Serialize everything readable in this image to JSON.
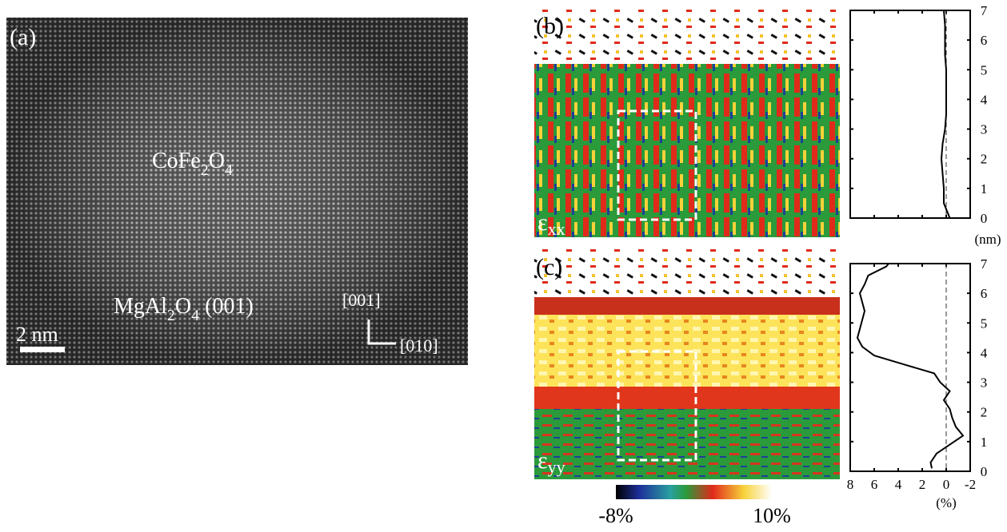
{
  "figure": {
    "panel_a": {
      "label": "(a)",
      "film": [
        "CoFe",
        "2",
        "O",
        "4"
      ],
      "substrate": [
        "MgAl",
        "2",
        "O",
        "4",
        " (001)"
      ],
      "scale_bar": "2 nm",
      "dir_up": "[001]",
      "dir_right": "[010]"
    },
    "panel_b": {
      "label": "(b)",
      "strain": [
        "ε",
        "xx"
      ]
    },
    "panel_c": {
      "label": "(c)",
      "strain": [
        "ε",
        "yy"
      ]
    },
    "colorbar": {
      "ticks": [
        {
          "value": -8,
          "label": "-8%"
        },
        {
          "value": 10,
          "label": "10%"
        }
      ]
    }
  },
  "chart_data": [
    {
      "type": "line",
      "ylabel": "(nm)",
      "xlim": [
        8,
        -2
      ],
      "ylim": [
        0,
        7
      ],
      "yticks": [
        0,
        1,
        2,
        3,
        4,
        5,
        6,
        7
      ],
      "xticks": [
        8,
        6,
        4,
        2,
        0,
        -2
      ],
      "xticklabels": false,
      "refline": 0,
      "color": "#000000",
      "y": [
        0,
        0.5,
        1,
        1.5,
        2,
        2.5,
        3,
        3.5,
        4,
        4.5,
        5,
        5.5,
        6,
        6.5,
        7
      ],
      "values": [
        -0.3,
        0.2,
        0.2,
        0.3,
        0.4,
        0.3,
        0.1,
        0,
        0,
        0,
        0,
        0.1,
        0.1,
        0.1,
        0.2
      ]
    },
    {
      "type": "line",
      "xlabel": "(%)",
      "xlim": [
        8,
        -2
      ],
      "ylim": [
        0,
        7
      ],
      "yticks": [
        0,
        1,
        2,
        3,
        4,
        5,
        6,
        7
      ],
      "xticks": [
        8,
        6,
        4,
        2,
        0,
        -2
      ],
      "xticklabels": true,
      "refline": 0,
      "color": "#000000",
      "y": [
        0.1,
        0.3,
        0.6,
        0.9,
        1.2,
        1.5,
        1.8,
        2.1,
        2.4,
        2.7,
        3.0,
        3.3,
        3.6,
        3.9,
        4.2,
        4.5,
        4.8,
        5.1,
        5.4,
        5.7,
        6.0,
        6.3,
        6.6,
        6.9,
        7.0
      ],
      "values": [
        1.2,
        1.3,
        0.8,
        -0.3,
        -1.4,
        -0.8,
        -0.5,
        -0.3,
        0.2,
        -0.3,
        0.5,
        1,
        3.5,
        6,
        7.0,
        7.4,
        7.2,
        7.0,
        6.8,
        7.0,
        7.2,
        6.8,
        6.5,
        5.0,
        4.8
      ]
    }
  ]
}
